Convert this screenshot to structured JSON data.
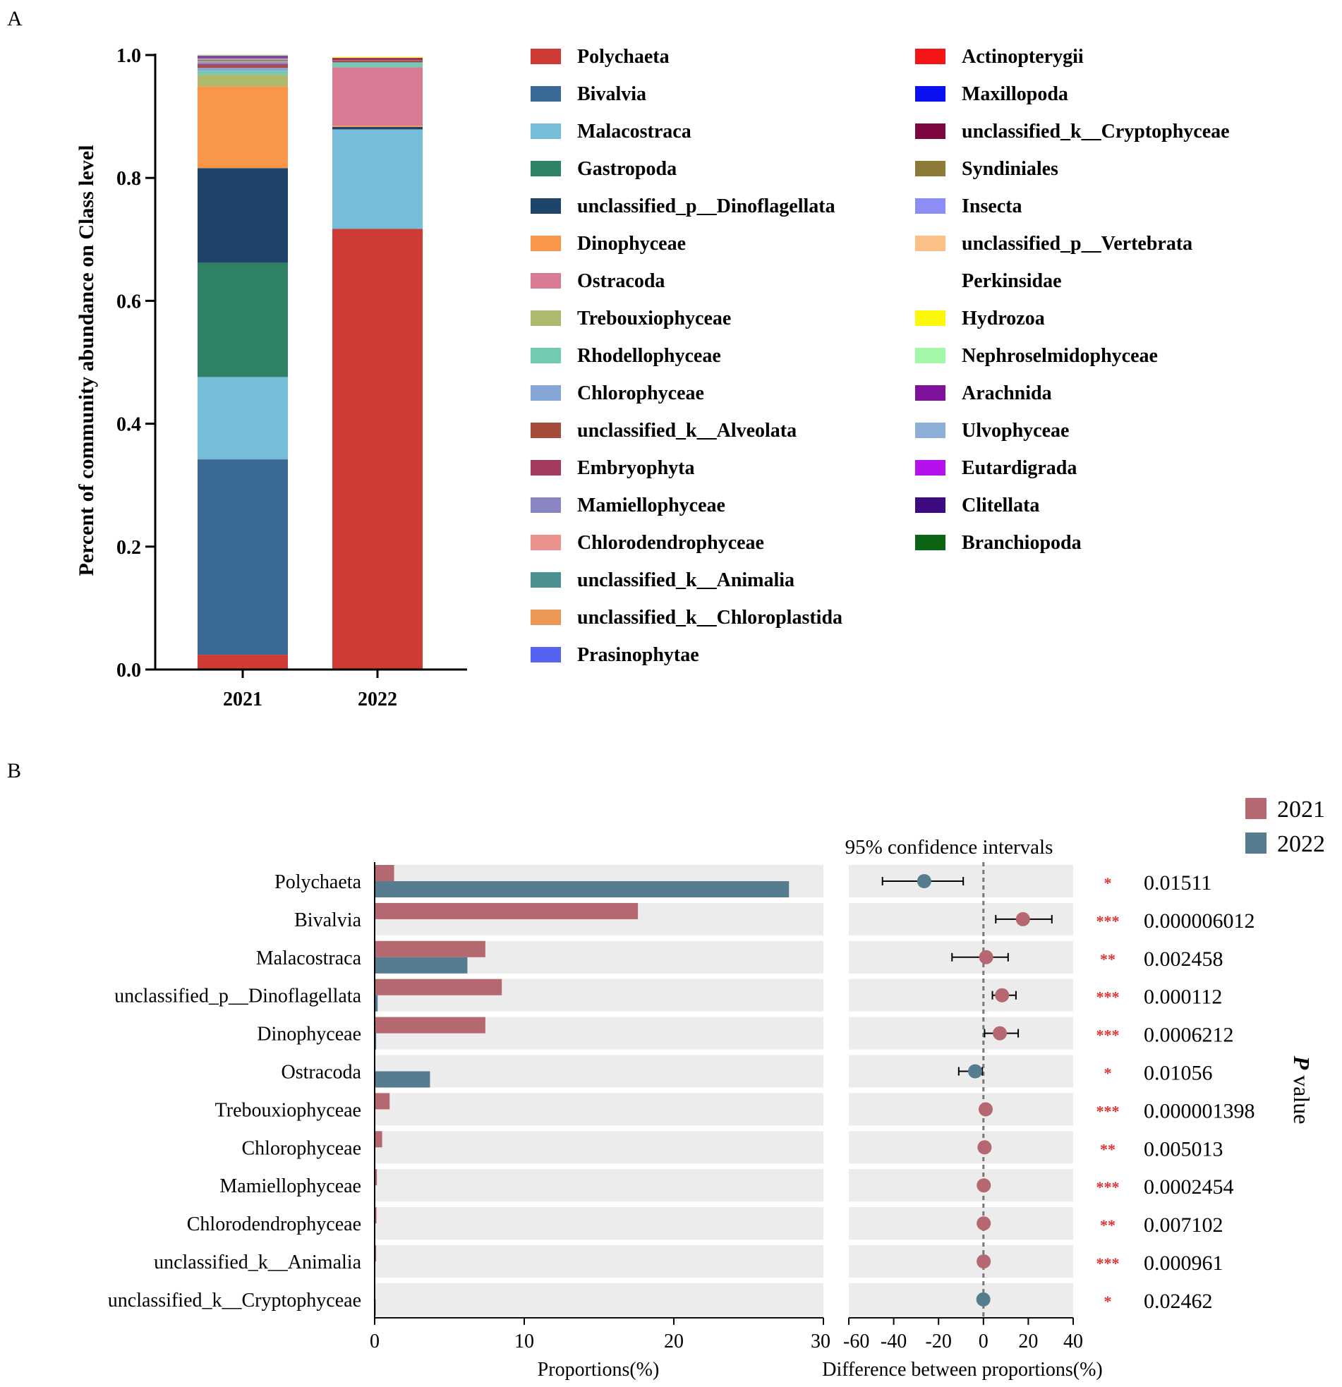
{
  "chart_data": [
    {
      "panel": "A",
      "type": "bar",
      "stacked": true,
      "title": "",
      "xlabel": "",
      "ylabel": "Percent of community abundance on Class level",
      "ylim": [
        0,
        1.0
      ],
      "yticks": [
        "0.0",
        "0.2",
        "0.4",
        "0.6",
        "0.8",
        "1.0"
      ],
      "categories": [
        "2021",
        "2022"
      ],
      "legend_position": "right",
      "series": [
        {
          "name": "Polychaeta",
          "color": "#cf3b34",
          "values": [
            0.024,
            0.717
          ]
        },
        {
          "name": "Bivalvia",
          "color": "#3a6996",
          "values": [
            0.318,
            0.0
          ]
        },
        {
          "name": "Malacostraca",
          "color": "#75bdd8",
          "values": [
            0.134,
            0.162
          ]
        },
        {
          "name": "Gastropoda",
          "color": "#2e8266",
          "values": [
            0.186,
            0.0
          ]
        },
        {
          "name": "unclassified_p__Dinoflagellata",
          "color": "#1f446b",
          "values": [
            0.154,
            0.004
          ]
        },
        {
          "name": "Dinophyceae",
          "color": "#f9964a",
          "values": [
            0.133,
            0.002
          ]
        },
        {
          "name": "Ostracoda",
          "color": "#d87a94",
          "values": [
            0.0,
            0.095
          ]
        },
        {
          "name": "Trebouxiophyceae",
          "color": "#aeb96e",
          "values": [
            0.019,
            0.0
          ]
        },
        {
          "name": "Rhodellophyceae",
          "color": "#74cbb4",
          "values": [
            0.006,
            0.008
          ]
        },
        {
          "name": "Chlorophyceae",
          "color": "#86a7d6",
          "values": [
            0.005,
            0.0
          ]
        },
        {
          "name": "unclassified_k__Alveolata",
          "color": "#a54c3b",
          "values": [
            0.003,
            0.001
          ]
        },
        {
          "name": "Embryophyta",
          "color": "#a23c5c",
          "values": [
            0.003,
            0.002
          ]
        },
        {
          "name": "Mamiellophyceae",
          "color": "#8a86c3",
          "values": [
            0.003,
            0.0
          ]
        },
        {
          "name": "Chlorodendrophyceae",
          "color": "#ea938c",
          "values": [
            0.002,
            0.0
          ]
        },
        {
          "name": "unclassified_k__Animalia",
          "color": "#4b918f",
          "values": [
            0.002,
            0.001
          ]
        },
        {
          "name": "unclassified_k__Chloroplastida",
          "color": "#ea9856",
          "values": [
            0.002,
            0.0
          ]
        },
        {
          "name": "Prasinophytae",
          "color": "#5464f2",
          "values": [
            0.002,
            0.0
          ]
        },
        {
          "name": "Actinopterygii",
          "color": "#f41616",
          "values": [
            0.001,
            0.001
          ]
        },
        {
          "name": "Maxillopoda",
          "color": "#0a10ef",
          "values": [
            0.001,
            0.0
          ]
        },
        {
          "name": "unclassified_k__Cryptophyceae",
          "color": "#7d0640",
          "values": [
            0.0,
            0.002
          ]
        },
        {
          "name": "Syndiniales",
          "color": "#8c7b38",
          "values": [
            0.001,
            0.0
          ]
        },
        {
          "name": "Insecta",
          "color": "#8b8ef6",
          "values": [
            0.0005,
            0.0
          ]
        },
        {
          "name": "unclassified_p__Vertebrata",
          "color": "#fcbf86",
          "values": [
            0.0005,
            0.001
          ]
        },
        {
          "name": "Perkinsidae",
          "color": "#ffffff",
          "values": [
            0.0005,
            0.0
          ]
        },
        {
          "name": "Hydrozoa",
          "color": "#fdf709",
          "values": [
            0.0,
            0.001
          ]
        },
        {
          "name": "Nephroselmidophyceae",
          "color": "#a2f8a7",
          "values": [
            0.0005,
            0.0
          ]
        },
        {
          "name": "Arachnida",
          "color": "#7e129a",
          "values": [
            0.0,
            0.0
          ]
        },
        {
          "name": "Ulvophyceae",
          "color": "#8daed6",
          "values": [
            0.0,
            0.0
          ]
        },
        {
          "name": "Eutardigrada",
          "color": "#b511ec",
          "values": [
            0.0,
            0.0
          ]
        },
        {
          "name": "Clitellata",
          "color": "#3e0a80",
          "values": [
            0.0,
            0.0
          ]
        },
        {
          "name": "Branchiopoda",
          "color": "#0b6314",
          "values": [
            0.0,
            0.0
          ]
        }
      ]
    },
    {
      "panel": "B",
      "type": "bar",
      "orientation": "horizontal",
      "xlabel": "Proportions(%)",
      "xlim": [
        0,
        30
      ],
      "xticks": [
        "0",
        "10",
        "20",
        "30"
      ],
      "categories": [
        "Polychaeta",
        "Bivalvia",
        "Malacostraca",
        "unclassified_p__Dinoflagellata",
        "Dinophyceae",
        "Ostracoda",
        "Trebouxiophyceae",
        "Chlorophyceae",
        "Mamiellophyceae",
        "Chlorodendrophyceae",
        "unclassified_k__Animalia",
        "unclassified_k__Cryptophyceae"
      ],
      "series": [
        {
          "name": "2021",
          "color": "#b5686f",
          "values": [
            1.3,
            17.6,
            7.4,
            8.5,
            7.4,
            0.0,
            1.0,
            0.5,
            0.15,
            0.12,
            0.1,
            0.0
          ]
        },
        {
          "name": "2022",
          "color": "#557d8f",
          "values": [
            27.7,
            0.0,
            6.2,
            0.2,
            0.1,
            3.7,
            0.0,
            0.0,
            0.0,
            0.0,
            0.0,
            0.05
          ]
        }
      ]
    },
    {
      "panel": "B",
      "type": "scatter",
      "title": "95% confidence intervals",
      "xlabel": "Difference between proportions(%)",
      "xlim": [
        -60,
        40
      ],
      "xticks": [
        "-60",
        "-40",
        "-20",
        "0",
        "20",
        "40"
      ],
      "categories": [
        "Polychaeta",
        "Bivalvia",
        "Malacostraca",
        "unclassified_p__Dinoflagellata",
        "Dinophyceae",
        "Ostracoda",
        "Trebouxiophyceae",
        "Chlorophyceae",
        "Mamiellophyceae",
        "Chlorodendrophyceae",
        "unclassified_k__Animalia",
        "unclassified_k__Cryptophyceae"
      ],
      "difference": [
        -26.4,
        17.6,
        1.2,
        8.3,
        7.3,
        -3.7,
        1.0,
        0.5,
        0.15,
        0.12,
        0.1,
        -0.05
      ],
      "ci_low": [
        -45,
        5.5,
        -14,
        4,
        0.5,
        -11,
        0.6,
        0.2,
        0.05,
        0.03,
        0.02,
        -0.1
      ],
      "ci_high": [
        -9,
        30.5,
        11,
        14.5,
        15.5,
        -0.5,
        1.4,
        0.8,
        0.25,
        0.21,
        0.18,
        0.0
      ],
      "enriched_in": [
        "2022",
        "2021",
        "2021",
        "2021",
        "2021",
        "2022",
        "2021",
        "2021",
        "2021",
        "2021",
        "2021",
        "2022"
      ],
      "significance": [
        "*",
        "***",
        "**",
        "***",
        "***",
        "*",
        "***",
        "**",
        "***",
        "**",
        "***",
        "*"
      ],
      "p_values": [
        "0.01511",
        "0.000006012",
        "0.002458",
        "0.000112",
        "0.0006212",
        "0.01056",
        "0.000001398",
        "0.005013",
        "0.0002454",
        "0.007102",
        "0.000961",
        "0.02462"
      ],
      "p_label_prefix": "P",
      "p_label_suffix": " value",
      "legend": [
        {
          "name": "2021",
          "color": "#b5686f"
        },
        {
          "name": "2022",
          "color": "#557d8f"
        }
      ],
      "legend_position": "top-right"
    }
  ],
  "panel_labels": {
    "a": "A",
    "b": "B"
  }
}
